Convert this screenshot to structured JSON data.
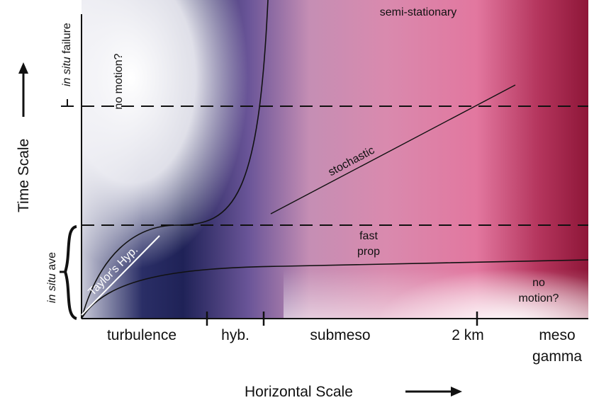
{
  "diagram": {
    "plot_labels": {
      "semi_stationary": "semi-stationary",
      "no_motion_top": "no motion?",
      "stochastic": "stochastic",
      "fast": "fast",
      "prop": "prop",
      "no_motion_bottom_1": "no",
      "no_motion_bottom_2": "motion?",
      "taylor": "Taylor's Hyp."
    },
    "x_categories": [
      "turbulence",
      "hyb.",
      "submeso",
      "2 km",
      "meso",
      "gamma"
    ],
    "x_axis_title": "Horizontal Scale",
    "y_axis_title": "Time Scale",
    "left_labels": {
      "failure_italic": "in situ",
      "failure_rest": " failure",
      "ave_italic": "in situ",
      "ave_rest": " ave"
    }
  }
}
